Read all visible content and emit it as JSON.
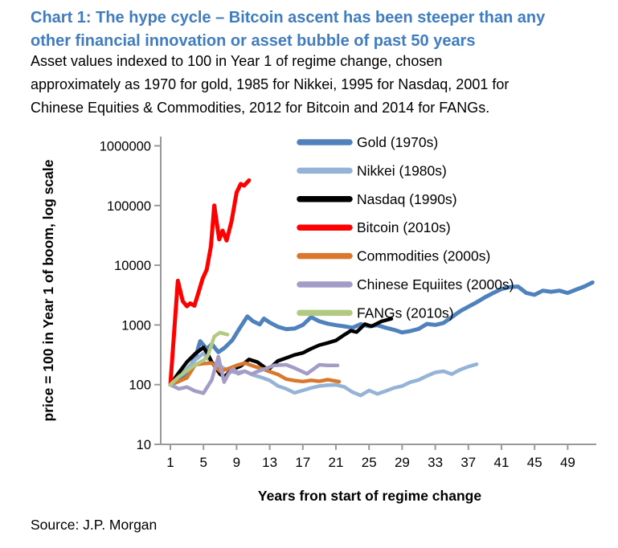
{
  "header": {
    "title_lines": [
      "Chart 1: The hype cycle – Bitcoin ascent has been steeper than any",
      "other financial innovation or asset bubble of past 50 years"
    ],
    "subtitle_lines": [
      "Asset values indexed to 100 in Year 1 of regime change, chosen",
      "approximately as 1970 for gold, 1985 for Nikkei, 1995 for Nasdaq, 2001 for",
      "Chinese Equities & Commodities, 2012 for Bitcoin and 2014 for FANGs."
    ]
  },
  "source": "Source: J.P. Morgan",
  "colors": {
    "title_blue": "#3F7DC0",
    "axis_gray": "#999999",
    "text": "#000000",
    "background": "#FFFFFF"
  },
  "chart_data": {
    "type": "line",
    "log_scale_y": true,
    "grid": false,
    "legend_position": "top-center-inside",
    "x_axis": {
      "label": "Years fron start of regime change",
      "ticks": [
        1,
        5,
        9,
        13,
        17,
        21,
        25,
        29,
        33,
        37,
        41,
        45,
        49
      ],
      "range": [
        1,
        52.5
      ]
    },
    "y_axis": {
      "label": "price = 100 in Year 1 of boom, log scale",
      "ticks": [
        10,
        100,
        1000,
        10000,
        100000,
        1000000
      ],
      "tick_labels": [
        "10",
        "100",
        "1000",
        "10000",
        "100000",
        "1000000"
      ],
      "range": [
        10,
        1000000
      ]
    },
    "series": [
      {
        "id": "gold",
        "name": "Gold (1970s)",
        "color": "#4F81BD",
        "width": 5,
        "points": [
          [
            1,
            100
          ],
          [
            2,
            114
          ],
          [
            3,
            165
          ],
          [
            4,
            280
          ],
          [
            4.6,
            535
          ],
          [
            5.4,
            395
          ],
          [
            6,
            480
          ],
          [
            6.8,
            350
          ],
          [
            7.6,
            420
          ],
          [
            8.5,
            560
          ],
          [
            9.3,
            850
          ],
          [
            10.3,
            1390
          ],
          [
            11,
            1150
          ],
          [
            11.8,
            1020
          ],
          [
            12.3,
            1280
          ],
          [
            13,
            1100
          ],
          [
            14,
            930
          ],
          [
            15,
            850
          ],
          [
            16,
            870
          ],
          [
            17,
            1000
          ],
          [
            18,
            1350
          ],
          [
            19,
            1150
          ],
          [
            20,
            1050
          ],
          [
            21,
            990
          ],
          [
            22,
            950
          ],
          [
            23,
            900
          ],
          [
            24,
            1030
          ],
          [
            25,
            950
          ],
          [
            26,
            990
          ],
          [
            27,
            900
          ],
          [
            28,
            830
          ],
          [
            29,
            750
          ],
          [
            30,
            790
          ],
          [
            31,
            860
          ],
          [
            32,
            1040
          ],
          [
            33,
            1000
          ],
          [
            34,
            1080
          ],
          [
            35,
            1350
          ],
          [
            36,
            1700
          ],
          [
            37,
            2020
          ],
          [
            38,
            2400
          ],
          [
            39,
            2900
          ],
          [
            40,
            3430
          ],
          [
            41,
            4000
          ],
          [
            42,
            4300
          ],
          [
            43,
            4400
          ],
          [
            44,
            3430
          ],
          [
            45,
            3200
          ],
          [
            46,
            3760
          ],
          [
            47,
            3600
          ],
          [
            48,
            3760
          ],
          [
            49,
            3430
          ],
          [
            50,
            3900
          ],
          [
            51,
            4400
          ],
          [
            52,
            5150
          ]
        ]
      },
      {
        "id": "nikkei",
        "name": "Nikkei (1980s)",
        "color": "#95B3D7",
        "width": 4.5,
        "points": [
          [
            1,
            100
          ],
          [
            2,
            140
          ],
          [
            3,
            185
          ],
          [
            4,
            260
          ],
          [
            5,
            335
          ],
          [
            6,
            230
          ],
          [
            7,
            205
          ],
          [
            8,
            170
          ],
          [
            9,
            158
          ],
          [
            10,
            168
          ],
          [
            11,
            145
          ],
          [
            12,
            132
          ],
          [
            13,
            118
          ],
          [
            14,
            95
          ],
          [
            15,
            85
          ],
          [
            16,
            73
          ],
          [
            17,
            80
          ],
          [
            18,
            88
          ],
          [
            19,
            95
          ],
          [
            20,
            98
          ],
          [
            21,
            99
          ],
          [
            22,
            92
          ],
          [
            23,
            75
          ],
          [
            24,
            66
          ],
          [
            25,
            80
          ],
          [
            26,
            70
          ],
          [
            27,
            78
          ],
          [
            28,
            88
          ],
          [
            29,
            95
          ],
          [
            30,
            110
          ],
          [
            31,
            120
          ],
          [
            32,
            140
          ],
          [
            33,
            160
          ],
          [
            34,
            168
          ],
          [
            35,
            150
          ],
          [
            36,
            178
          ],
          [
            37,
            200
          ],
          [
            38,
            220
          ]
        ]
      },
      {
        "id": "nasdaq",
        "name": "Nasdaq (1990s)",
        "color": "#000000",
        "width": 4.5,
        "points": [
          [
            1,
            100
          ],
          [
            2,
            157
          ],
          [
            3,
            240
          ],
          [
            4,
            330
          ],
          [
            5,
            420
          ],
          [
            5.5,
            330
          ],
          [
            6,
            240
          ],
          [
            7,
            150
          ],
          [
            7.5,
            136
          ],
          [
            8.5,
            178
          ],
          [
            9.5,
            205
          ],
          [
            10.5,
            265
          ],
          [
            11.5,
            240
          ],
          [
            12.8,
            177
          ],
          [
            14,
            250
          ],
          [
            15,
            280
          ],
          [
            16,
            315
          ],
          [
            17,
            340
          ],
          [
            18,
            400
          ],
          [
            19,
            460
          ],
          [
            20,
            500
          ],
          [
            21,
            550
          ],
          [
            22,
            680
          ],
          [
            22.8,
            800
          ],
          [
            23.5,
            760
          ],
          [
            24.5,
            1030
          ],
          [
            25.3,
            950
          ],
          [
            26.5,
            1150
          ],
          [
            27.7,
            1270
          ]
        ]
      },
      {
        "id": "bitcoin",
        "name": "Bitcoin (2010s)",
        "color": "#FF0000",
        "width": 5,
        "points": [
          [
            1,
            100
          ],
          [
            1.9,
            5500
          ],
          [
            2.5,
            2500
          ],
          [
            3,
            2050
          ],
          [
            3.4,
            2300
          ],
          [
            3.9,
            2100
          ],
          [
            4.4,
            3500
          ],
          [
            4.9,
            6000
          ],
          [
            5.4,
            8500
          ],
          [
            5.9,
            21000
          ],
          [
            6.3,
            100000
          ],
          [
            6.9,
            27000
          ],
          [
            7.3,
            38000
          ],
          [
            7.8,
            26000
          ],
          [
            8.4,
            55000
          ],
          [
            9,
            165000
          ],
          [
            9.5,
            230000
          ],
          [
            9.9,
            215000
          ],
          [
            10.5,
            265000
          ]
        ]
      },
      {
        "id": "commodities",
        "name": "Commodities (2000s)",
        "color": "#D9782D",
        "width": 4.5,
        "points": [
          [
            1,
            100
          ],
          [
            2,
            113
          ],
          [
            3,
            130
          ],
          [
            4,
            216
          ],
          [
            5,
            225
          ],
          [
            6,
            230
          ],
          [
            7,
            168
          ],
          [
            8,
            185
          ],
          [
            9,
            210
          ],
          [
            10,
            230
          ],
          [
            11,
            205
          ],
          [
            12,
            185
          ],
          [
            13,
            165
          ],
          [
            14,
            148
          ],
          [
            15,
            124
          ],
          [
            16,
            117
          ],
          [
            17,
            113
          ],
          [
            18,
            118
          ],
          [
            19,
            114
          ],
          [
            20,
            121
          ],
          [
            21.4,
            112
          ]
        ]
      },
      {
        "id": "chinese-equiites",
        "name": "Chinese Equiites (2000s)",
        "color": "#A49BC6",
        "width": 4.5,
        "points": [
          [
            1,
            100
          ],
          [
            2,
            85
          ],
          [
            3,
            91
          ],
          [
            4,
            78
          ],
          [
            5,
            72
          ],
          [
            6,
            120
          ],
          [
            6.8,
            295
          ],
          [
            7.5,
            110
          ],
          [
            8,
            150
          ],
          [
            8.6,
            185
          ],
          [
            9.2,
            152
          ],
          [
            10,
            168
          ],
          [
            10.8,
            150
          ],
          [
            11.5,
            165
          ],
          [
            12.5,
            185
          ],
          [
            13.5,
            210
          ],
          [
            15,
            215
          ],
          [
            16,
            190
          ],
          [
            17.5,
            152
          ],
          [
            19,
            215
          ],
          [
            20,
            210
          ],
          [
            21.2,
            210
          ]
        ]
      },
      {
        "id": "fangs",
        "name": "FANGs (2010s)",
        "color": "#B2C981",
        "width": 4.5,
        "points": [
          [
            1,
            100
          ],
          [
            2,
            135
          ],
          [
            3,
            170
          ],
          [
            4,
            215
          ],
          [
            5,
            255
          ],
          [
            5.5,
            300
          ],
          [
            6,
            480
          ],
          [
            6.3,
            640
          ],
          [
            7,
            745
          ],
          [
            7.9,
            690
          ]
        ]
      }
    ]
  }
}
